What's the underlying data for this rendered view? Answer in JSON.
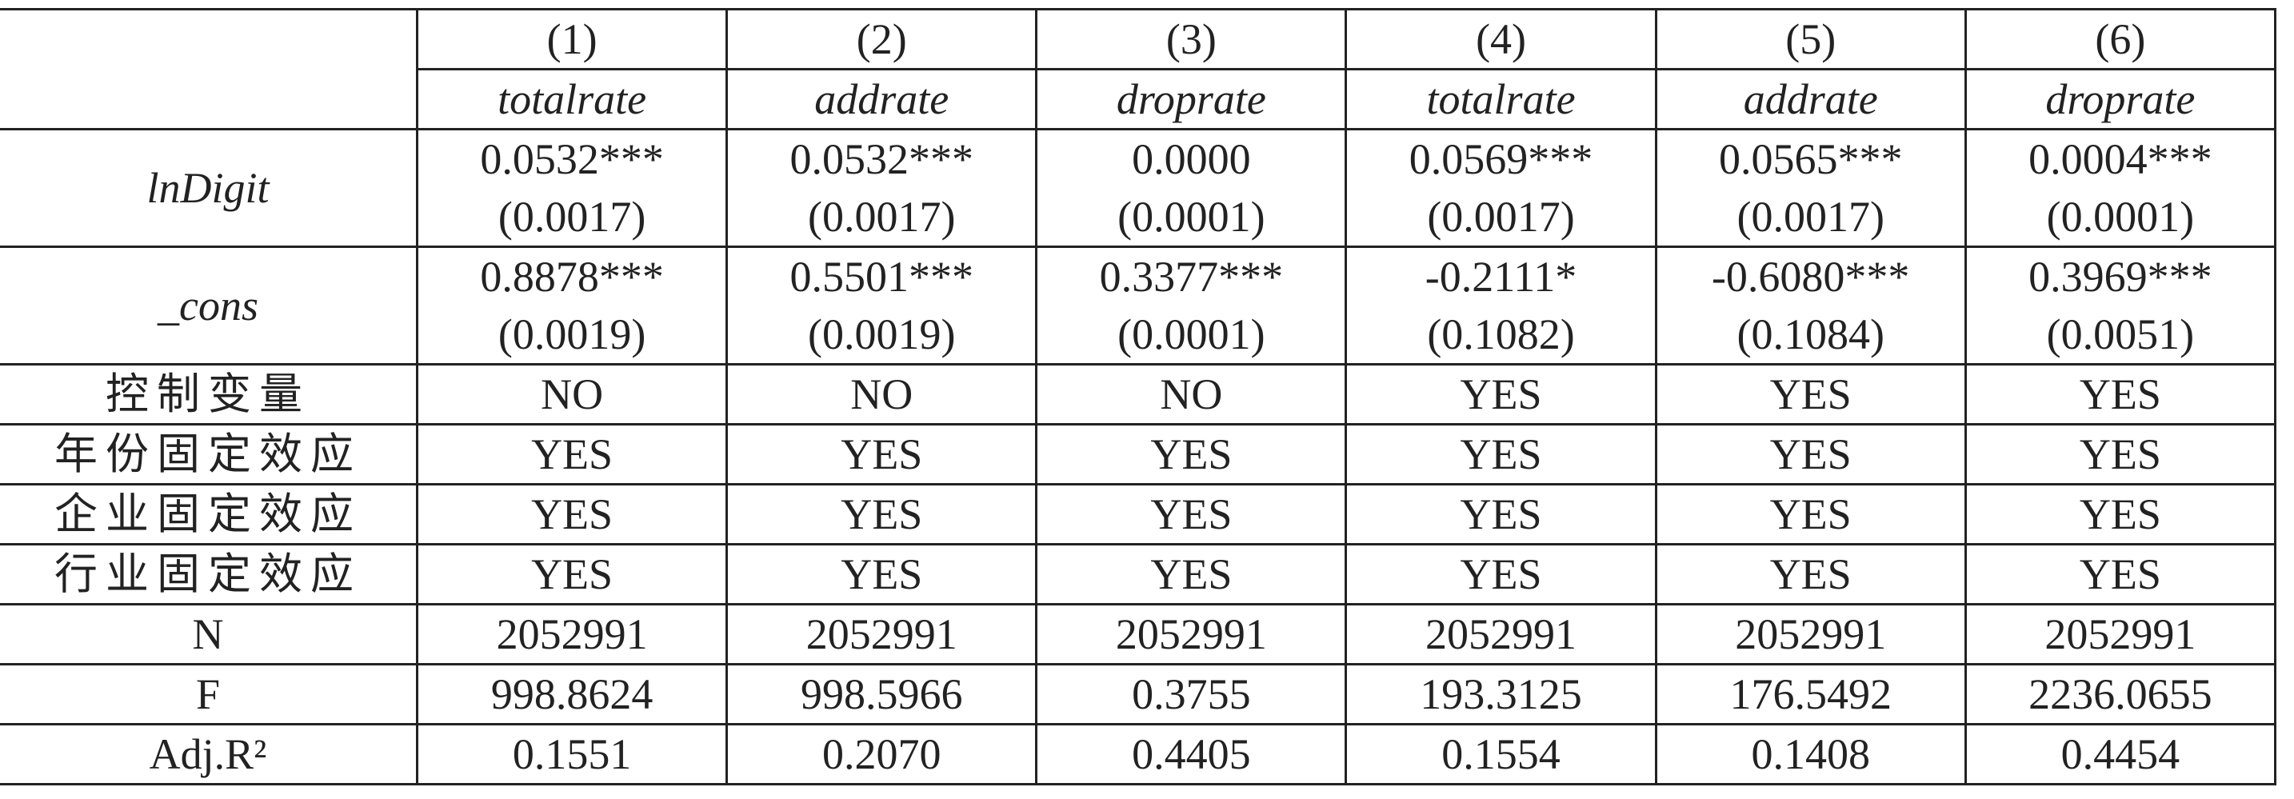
{
  "table": {
    "columns": [
      "(1)",
      "(2)",
      "(3)",
      "(4)",
      "(5)",
      "(6)"
    ],
    "dependent": [
      "totalrate",
      "addrate",
      "droprate",
      "totalrate",
      "addrate",
      "droprate"
    ],
    "rows": [
      {
        "label": "lnDigit",
        "cells": [
          {
            "coef": "0.0532***",
            "se": "(0.0017)"
          },
          {
            "coef": "0.0532***",
            "se": "(0.0017)"
          },
          {
            "coef": "0.0000",
            "se": "(0.0001)"
          },
          {
            "coef": "0.0569***",
            "se": "(0.0017)"
          },
          {
            "coef": "0.0565***",
            "se": "(0.0017)"
          },
          {
            "coef": "0.0004***",
            "se": "(0.0001)"
          }
        ]
      },
      {
        "label": "_cons",
        "cells": [
          {
            "coef": "0.8878***",
            "se": "(0.0019)"
          },
          {
            "coef": "0.5501***",
            "se": "(0.0019)"
          },
          {
            "coef": "0.3377***",
            "se": "(0.0001)"
          },
          {
            "coef": "-0.2111*",
            "se": "(0.1082)"
          },
          {
            "coef": "-0.6080***",
            "se": "(0.1084)"
          },
          {
            "coef": "0.3969***",
            "se": "(0.0051)"
          }
        ]
      },
      {
        "label": "控制变量",
        "cells": [
          "NO",
          "NO",
          "NO",
          "YES",
          "YES",
          "YES"
        ]
      },
      {
        "label": "年份固定效应",
        "cells": [
          "YES",
          "YES",
          "YES",
          "YES",
          "YES",
          "YES"
        ]
      },
      {
        "label": "企业固定效应",
        "cells": [
          "YES",
          "YES",
          "YES",
          "YES",
          "YES",
          "YES"
        ]
      },
      {
        "label": "行业固定效应",
        "cells": [
          "YES",
          "YES",
          "YES",
          "YES",
          "YES",
          "YES"
        ]
      },
      {
        "label": "N",
        "cells": [
          "2052991",
          "2052991",
          "2052991",
          "2052991",
          "2052991",
          "2052991"
        ]
      },
      {
        "label": "F",
        "cells": [
          "998.8624",
          "998.5966",
          "0.3755",
          "193.3125",
          "176.5492",
          "2236.0655"
        ]
      },
      {
        "label": "Adj.R²",
        "cells": [
          "0.1551",
          "0.2070",
          "0.4405",
          "0.1554",
          "0.1408",
          "0.4454"
        ]
      }
    ]
  }
}
